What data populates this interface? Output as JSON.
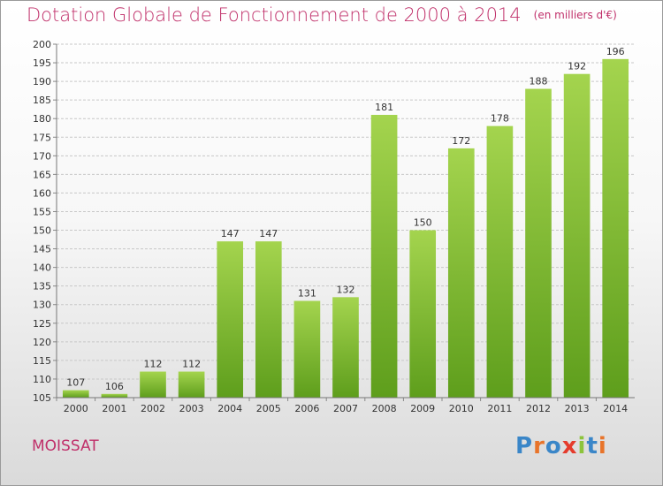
{
  "header": {
    "title": "Dotation Globale de Fonctionnement de 2000 à 2014",
    "unit": "(en milliers d'€)"
  },
  "commune": "MOISSAT",
  "logo": {
    "text": "Proxiti",
    "letters": [
      {
        "ch": "P",
        "color": "#3a86c8"
      },
      {
        "ch": "r",
        "color": "#e8742a"
      },
      {
        "ch": "o",
        "color": "#3a86c8"
      },
      {
        "ch": "x",
        "color": "#e53b2c"
      },
      {
        "ch": "i",
        "color": "#8cc43c"
      },
      {
        "ch": "t",
        "color": "#3a86c8"
      },
      {
        "ch": "i",
        "color": "#e8742a"
      }
    ]
  },
  "colors": {
    "bar_top": "#a4d44e",
    "bar_bottom": "#5e9e1c",
    "grid": "#c8c8c8",
    "title": "#c0306a"
  },
  "chart_data": {
    "type": "bar",
    "title": "Dotation Globale de Fonctionnement de 2000 à 2014",
    "subtitle": "(en milliers d'€)",
    "categories": [
      "2000",
      "2001",
      "2002",
      "2003",
      "2004",
      "2005",
      "2006",
      "2007",
      "2008",
      "2009",
      "2010",
      "2011",
      "2012",
      "2013",
      "2014"
    ],
    "values": [
      107,
      106,
      112,
      112,
      147,
      147,
      131,
      132,
      181,
      150,
      172,
      178,
      188,
      192,
      196
    ],
    "ylim": [
      105,
      200
    ],
    "ytick_step": 5,
    "grid": true,
    "xlabel": "",
    "ylabel": ""
  }
}
